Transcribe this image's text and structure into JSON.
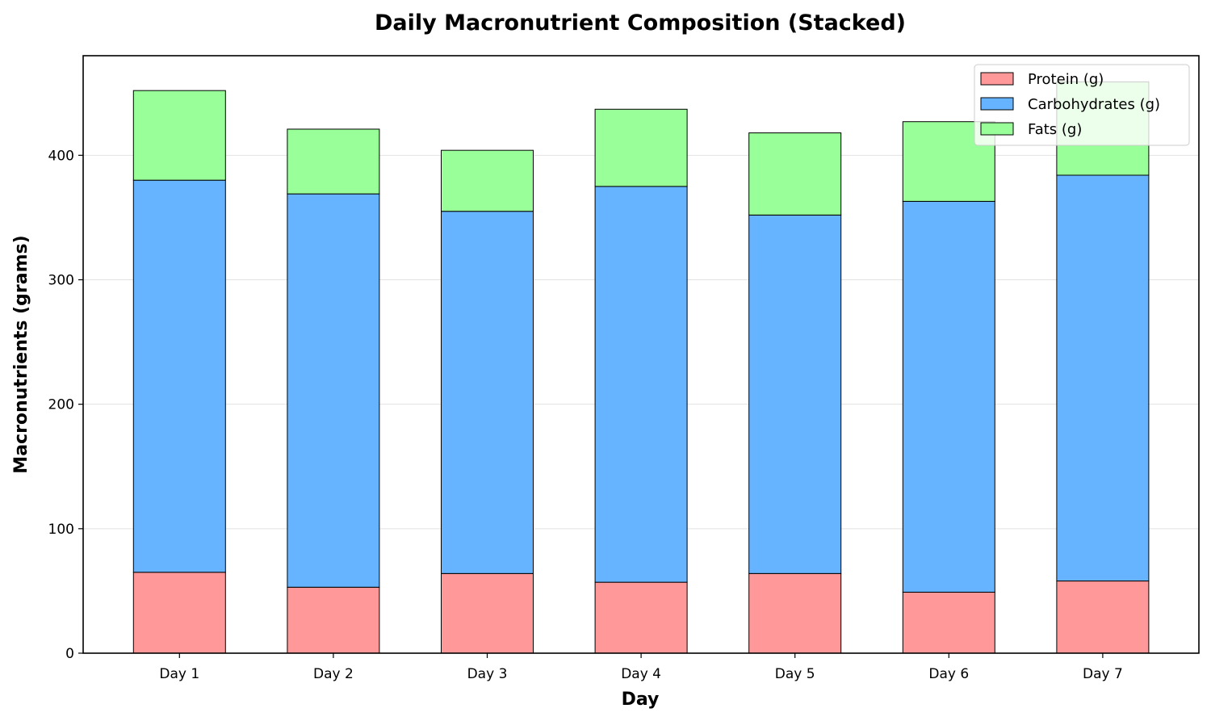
{
  "chart_data": {
    "type": "bar",
    "stacked": true,
    "title": "Daily Macronutrient Composition (Stacked)",
    "xlabel": "Day",
    "ylabel": "Macronutrients (grams)",
    "categories": [
      "Day 1",
      "Day 2",
      "Day 3",
      "Day 4",
      "Day 5",
      "Day 6",
      "Day 7"
    ],
    "series": [
      {
        "name": "Protein (g)",
        "color": "#ff9999",
        "values": [
          65,
          53,
          64,
          57,
          64,
          49,
          58
        ]
      },
      {
        "name": "Carbohydrates (g)",
        "color": "#66b3ff",
        "values": [
          315,
          316,
          291,
          318,
          288,
          314,
          326
        ]
      },
      {
        "name": "Fats (g)",
        "color": "#99ff99",
        "values": [
          72,
          52,
          49,
          62,
          66,
          64,
          75
        ]
      }
    ],
    "ylim": [
      0,
      480
    ],
    "yticks": [
      0,
      100,
      200,
      300,
      400
    ],
    "grid": "y",
    "legend_position": "top-right"
  }
}
